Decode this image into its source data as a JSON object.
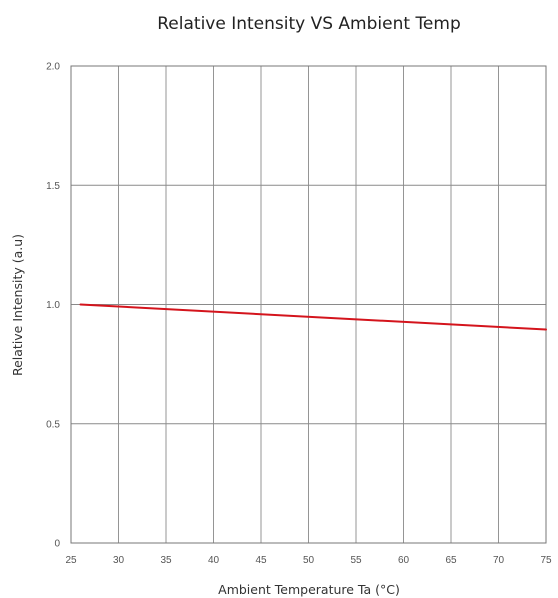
{
  "chart_data": {
    "type": "line",
    "title": "Relative Intensity VS Ambient Temp",
    "xlabel": "Ambient Temperature Ta (°C)",
    "ylabel": "Relative Intensity (a.u)",
    "xlim": [
      25,
      75
    ],
    "ylim": [
      0,
      2.0
    ],
    "x_ticks": [
      25,
      30,
      35,
      40,
      45,
      50,
      55,
      60,
      65,
      70,
      75
    ],
    "x_tick_labels": [
      "25",
      "30",
      "35",
      "40",
      "45",
      "50",
      "55",
      "60",
      "65",
      "70",
      "75"
    ],
    "y_ticks": [
      0,
      0.5,
      1.0,
      1.5,
      2.0
    ],
    "y_tick_labels": [
      "0",
      "0.5",
      "1.0",
      "1.5",
      "2.0"
    ],
    "grid": true,
    "series": [
      {
        "color": "#d4141c",
        "x": [
          26,
          75
        ],
        "y": [
          1.0,
          0.895
        ]
      }
    ]
  }
}
